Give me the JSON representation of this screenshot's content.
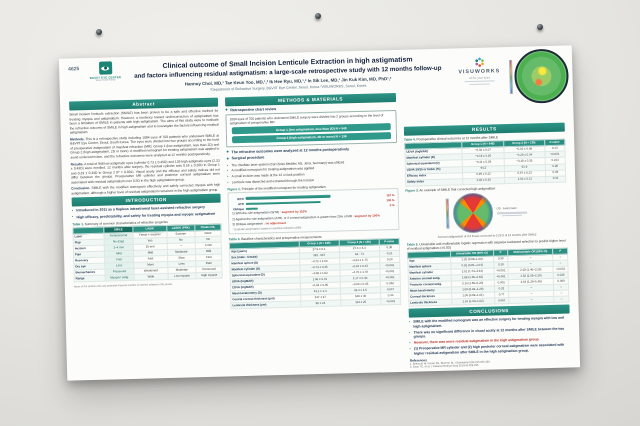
{
  "poster": {
    "header": {
      "poster_number": "4625",
      "logo_org_line1": "B&VIIT EYE CENTER",
      "logo_org_line2": "Seoul, South Korea",
      "title_line1": "Clinical outcome of Small Incision Lenticule Extraction in high astigmatism",
      "title_line2": "and factors influencing residual astigmatism: a large-scale retrospective study with 12 months follow-up",
      "authors": "Hannuy Choi, MD,¹ Tae Keun Yoo, MD,¹,² Ik Hee Ryu, MD,¹,² In Sik Lee, MD,¹ Jin Kuk Kim, MD, PhD¹,²",
      "affiliations": "¹Department of Refractive Surgery, B&VIIT Eye Center, Seoul, Korea   ²VISUWORKS, Seoul, Korea",
      "brand_name": "VISUWORKS",
      "brand_tagline": "All for your eyes"
    },
    "abstract": {
      "heading": "Abstract",
      "p1": "Small incision lenticule extraction (SMILE) has been proven to be a safe and effective method for treating myopia and astigmatism. However, a tendency toward undercorrection of astigmatism has been a limitation of SMILE in patients with high astigmatism. The aims of this study were to evaluate the refractive outcome of SMILE in high astigmatism and to investigate the factors influencing residual astigmatism.",
      "methods_head": "Methods.",
      "methods_text": "This is a retrospective study including 1084 eyes of 700 patients who underwent SMILE at B&VIIT Eye Center, Seoul, South Korea. The eyes were divided into two groups according to the level of preoperative astigmatism of manifest refraction (MR): Group 1 (low astigmatism, less than 2D) and Group 2 (high astigmatism, 2D or more). A modified nomogram for treating astigmatism was applied to avoid undercorrection, and the refractive outcomes were analyzed at 12 months postoperatively.",
      "results_head": "Results.",
      "results_text": "A total of 948 low astigmatic eyes (cylinder 0.73 ± 0.45D) and 136 high astigmatic eyes (2.33 ± 0.43D) were enrolled. 12 months after surgery, the residual cylinder was 0.18 ± 0.26D in Group 1 and 0.29 ± 0.34D in Group 2 (P < 0.001). Visual acuity and the efficacy and safety indices did not differ between the groups. Preoperative MR cylinder and posterior corneal astigmatism were associated with residual astigmatism over 0.5D in the high astigmatism group.",
      "conclusion_head": "Conclusion.",
      "conclusion_text": "SMILE with the modified nomogram effectively and safely corrected myopia with high astigmatism, although a higher level of residual astigmatism remained in the high astigmatism group."
    },
    "introduction": {
      "heading": "INTRODUCTION",
      "bullets": [
        "Introduced in 2011 as a flapless intrastromal laser-assisted refractive surgery",
        "High efficacy, predictability, and safety for treating myopia and myopic astigmatism"
      ]
    },
    "table1": {
      "caption_label": "Table 1.",
      "caption_text": "Summary of common characteristics of refractive surgeries",
      "columns": [
        "",
        "SMILE",
        "LASIK",
        "LASEK (PRK)",
        "Phakic IOL"
      ],
      "rows": [
        [
          "Laser",
          "Femtosecond",
          "Femto + excimer",
          "Excimer",
          "None"
        ],
        [
          "Flap",
          "No (cap)",
          "Yes",
          "No",
          "No"
        ],
        [
          "Incision",
          "2–4 mm",
          "20 mm",
          "–",
          "3 mm"
        ],
        [
          "Pain",
          "Mild",
          "Mild",
          "Moderate",
          "Mild"
        ],
        [
          "Recovery",
          "Fast",
          "Fast",
          "Slow",
          "Fast"
        ],
        [
          "Dry eye",
          "Less",
          "More",
          "Less",
          "Rare"
        ],
        [
          "Biomechanics",
          "Preserved",
          "Weakened",
          "Moderate",
          "Preserved"
        ],
        [
          "Range",
          "Myopia / astig.",
          "Wide",
          "Low myopia",
          "High myopia"
        ]
      ]
    },
    "footnote": "None of the authors has any potential financial conflict of interest related to this poster.",
    "methods": {
      "heading": "METHODS & MATERIALS",
      "chart_review_label": "Retrospective chart review",
      "box_intro": "1084 eyes of 700 patients who underwent SMILE surgery were divided into 2 groups according to the level of astigmatism of preoperative MR",
      "group1_pill": "Group 1 (low astigmatism, less than 2D)   N = 948",
      "group2_pill": "Group 2 (high astigmatism, 2D or more)   N = 136",
      "outcome_line": "The refractive outcomes were analyzed at 12 months postoperatively",
      "surgery_label": "Surgical procedure",
      "surgery_bullets": [
        "The VisuMax laser system (Carl Zeiss Meditec AG, Jena, Germany) was utilized",
        "A modified nomogram for treating astigmatism was applied",
        "A small incision was made at the 12 o'clock position",
        "Lenticule was dissected and extracted through the incision"
      ]
    },
    "figure1": {
      "caption_label": "Figure 1.",
      "caption_text": "Principle of the modified nomogram for treating astigmatism",
      "rows": [
        {
          "label": "WTR",
          "value": "110 %"
        },
        {
          "label": "ATR",
          "value": "100 %"
        },
        {
          "label": "Oblique",
          "value": "0 %"
        }
      ],
      "note1_plain": "1) With-the-rule astigmatism (WTR) :",
      "note1_red": "augment by 110%",
      "note2_plain": "2) Against-the-rule astigmatism (ATR), or if corneal astigmatism is greater than 20% of MR :",
      "note2_red": "augment by 100%",
      "note3_plain": "3) Oblique astigmatism :",
      "note3_red": "no adjustment",
      "footnote": "* Evaluate astigmatism based on manifest refraction (MR)"
    },
    "table3": {
      "caption_label": "Table 3.",
      "caption_text": "Baseline characteristics and preoperative measurements",
      "columns": [
        "",
        "Group 1 (N = 948)",
        "Group 2 (N = 136)",
        "P-value"
      ],
      "rows": [
        [
          "Age (years)",
          "27.9 ± 6.1",
          "27.4 ± 6.4",
          "0.38"
        ],
        [
          "Sex (male : female)",
          "381 : 567",
          "62 : 74",
          "0.21"
        ],
        [
          "Manifest sphere (D)",
          "−3.72 ± 1.60",
          "−3.53 ± 1.75",
          "0.20"
        ],
        [
          "Manifest cylinder (D)",
          "−0.73 ± 0.45",
          "−2.33 ± 0.43",
          "<0.001"
        ],
        [
          "Spherical equivalent (D)",
          "−4.08 ± 1.62",
          "−4.70 ± 1.78",
          "<0.001"
        ],
        [
          "UDVA (logMAR)",
          "1.06 ± 0.31",
          "1.17 ± 0.30",
          "<0.001"
        ],
        [
          "CDVA (logMAR)",
          "−0.04 ± 0.05",
          "−0.03 ± 0.05",
          "0.052"
        ],
        [
          "Mean keratometry (D)",
          "43.1 ± 1.4",
          "43.4 ± 1.5",
          "0.047"
        ],
        [
          "Central corneal thickness (μm)",
          "547 ± 27",
          "549 ± 30",
          "0.44"
        ],
        [
          "Lenticule thickness (μm)",
          "98 ± 24",
          "113 ± 25",
          "<0.001"
        ]
      ]
    },
    "results": {
      "heading": "RESULTS"
    },
    "table4": {
      "caption_label": "Table 4.",
      "caption_text": "Postoperative clinical outcomes at 12 months after SMILE",
      "columns": [
        "",
        "Group 1 (N = 948)",
        "Group 2 (N = 136)",
        "P-value"
      ],
      "rows": [
        [
          "UDVA (logMAR)",
          "−0.02 ± 0.07",
          "−0.01 ± 0.08",
          "0.14"
        ],
        [
          "Manifest cylinder (D)",
          "−0.18 ± 0.26",
          "−0.29 ± 0.34",
          "<0.001"
        ],
        [
          "Spherical equivalent (D)",
          "−0.11 ± 0.29",
          "−0.18 ± 0.35",
          "0.013"
        ],
        [
          "UDVA 20/20 or better (%)",
          "94.2",
          "91.9",
          "0.28"
        ],
        [
          "Efficacy index",
          "0.99 ± 0.12",
          "0.97 ± 0.13",
          "0.09"
        ],
        [
          "Safety index",
          "1.02 ± 0.10",
          "1.01 ± 0.11",
          "0.31"
        ]
      ]
    },
    "figure3": {
      "caption_label": "Figure 3.",
      "caption_text": "An example of SMILE that corrected high astigmatism",
      "legend1": "OD · Axial power",
      "note": "Corneal astigmatism of 3.0 D was corrected to 0.25 D at 12 months after SMILE"
    },
    "table5": {
      "caption_label": "Table 5.",
      "caption_text": "Univariable and multivariable logistic regression with stepwise backward selection to predict higher level of residual astigmatism (>0.5D)",
      "columns": [
        "",
        "Univariable OR (95% CI)",
        "P",
        "Multivariable OR (95% CI)",
        "P"
      ],
      "rows": [
        [
          "Age",
          "1.02 (0.98–1.06)",
          "0.30",
          "–",
          "–"
        ],
        [
          "Manifest sphere",
          "0.92 (0.81–1.04)",
          "0.18",
          "–",
          "–"
        ],
        [
          "Manifest cylinder",
          "2.51 (1.73–3.64)",
          "<0.001",
          "2.18 (1.46–3.25)",
          "<0.001"
        ],
        [
          "Anterior corneal astig.",
          "1.88 (1.35–2.62)",
          "<0.001",
          "1.52 (1.05–2.20)",
          "0.026"
        ],
        [
          "Posterior corneal astig.",
          "3.10 (1.55–6.20)",
          "0.001",
          "2.64 (1.28–5.45)",
          "0.009"
        ],
        [
          "Mean keratometry",
          "1.09 (0.92–1.29)",
          "0.32",
          "–",
          "–"
        ],
        [
          "Corneal thickness",
          "1.00 (0.99–1.01)",
          "0.77",
          "–",
          "–"
        ],
        [
          "Lenticule thickness",
          "1.01 (1.00–1.02)",
          "0.067",
          "–",
          "–"
        ]
      ]
    },
    "conclusions": {
      "heading": "CONCLUSIONS",
      "b1": "SMILE with the modified nomogram was an effective surgery for treating myopia with low and high astigmatism.",
      "b2": "There was no significant difference in visual acuity at 12 months after SMILE between the two groups.",
      "b3": "However, there was more residual astigmatism in the high astigmatism group.",
      "b4": "(1) Preoperative MR cylinder and (2) high posterior corneal astigmatism were associated with higher residual astigmatism after SMILE in the high astigmatism group."
    },
    "references": {
      "heading": "References",
      "items": [
        "1. Sekundo W, Kunert KS, Blum M. Br J Ophthalmol 2011;95:335-339.",
        "2. Chan TC, et al. J Cataract Refract Surg 2019;45:328-333."
      ]
    }
  }
}
